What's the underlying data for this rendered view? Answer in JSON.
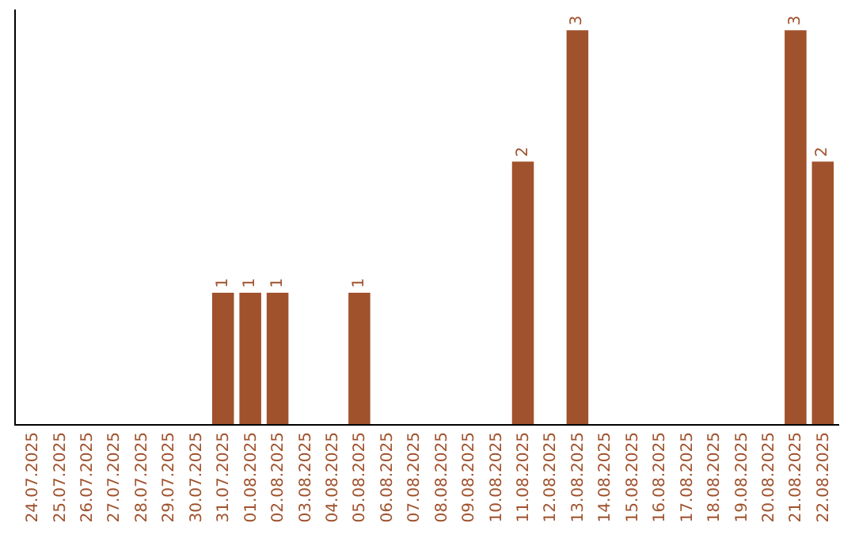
{
  "chart_data": {
    "type": "bar",
    "categories": [
      "24.07.2025",
      "25.07.2025",
      "26.07.2025",
      "27.07.2025",
      "28.07.2025",
      "29.07.2025",
      "30.07.2025",
      "31.07.2025",
      "01.08.2025",
      "02.08.2025",
      "03.08.2025",
      "04.08.2025",
      "05.08.2025",
      "06.08.2025",
      "07.08.2025",
      "08.08.2025",
      "09.08.2025",
      "10.08.2025",
      "11.08.2025",
      "12.08.2025",
      "13.08.2025",
      "14.08.2025",
      "15.08.2025",
      "16.08.2025",
      "17.08.2025",
      "18.08.2025",
      "19.08.2025",
      "20.08.2025",
      "21.08.2025",
      "22.08.2025"
    ],
    "values": [
      0,
      0,
      0,
      0,
      0,
      0,
      0,
      1,
      1,
      1,
      0,
      0,
      1,
      0,
      0,
      0,
      0,
      0,
      2,
      0,
      3,
      0,
      0,
      0,
      0,
      0,
      0,
      0,
      3,
      2
    ],
    "value_labels": [
      null,
      null,
      null,
      null,
      null,
      null,
      null,
      "1",
      "1",
      "1",
      null,
      null,
      "1",
      null,
      null,
      null,
      null,
      null,
      "2",
      null,
      "3",
      null,
      null,
      null,
      null,
      null,
      null,
      null,
      "3",
      "2"
    ],
    "color": "#a0522d"
  }
}
